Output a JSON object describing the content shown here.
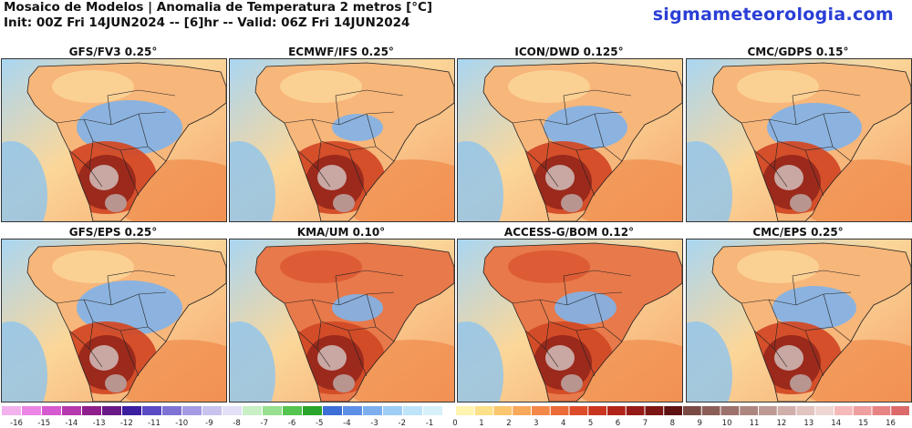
{
  "header": {
    "title": "Mosaico de Modelos | Anomalia de Temperatura 2 metros [°C]",
    "subtitle": "Init: 00Z Fri 14JUN2024 -- [6]hr -- Valid: 06Z Fri 14JUN2024",
    "brand": "sigmameteorologia.com"
  },
  "panels": [
    {
      "label": "GFS/FV3 0.25°",
      "warmth": 0.4,
      "cool_inland": 0.8
    },
    {
      "label": "ECMWF/IFS 0.25°",
      "warmth": 0.2,
      "cool_inland": 0.3
    },
    {
      "label": "ICON/DWD 0.125°",
      "warmth": 0.5,
      "cool_inland": 0.6
    },
    {
      "label": "CMC/GDPS 0.15°",
      "warmth": 0.6,
      "cool_inland": 0.7
    },
    {
      "label": "GFS/EPS 0.25°",
      "warmth": 0.4,
      "cool_inland": 0.8
    },
    {
      "label": "KMA/UM 0.10°",
      "warmth": 0.9,
      "cool_inland": 0.3
    },
    {
      "label": "ACCESS-G/BOM 0.12°",
      "warmth": 0.8,
      "cool_inland": 0.4
    },
    {
      "label": "CMC/EPS 0.25°",
      "warmth": 0.5,
      "cool_inland": 0.6
    }
  ],
  "colorbar": {
    "labels": [
      "-16",
      "-15",
      "-14",
      "-13",
      "-12",
      "-11",
      "-10",
      "-9",
      "-8",
      "-7",
      "-6",
      "-5",
      "-4",
      "-3",
      "-2",
      "-1",
      "0",
      "1",
      "2",
      "3",
      "4",
      "5",
      "6",
      "7",
      "8",
      "9",
      "10",
      "11",
      "12",
      "13",
      "14",
      "15",
      "16"
    ],
    "neg_colors": [
      "#f3b2ee",
      "#ec86e6",
      "#d65ad0",
      "#b63aae",
      "#8e1f8c",
      "#6a1a86",
      "#3b1fa0",
      "#5b4bc4",
      "#7e73d4",
      "#a49be2",
      "#c8c2ee",
      "#e2dff6",
      "#c9efc5",
      "#96e08e",
      "#55c450",
      "#2aa52b",
      "#3d6fd6",
      "#5e8fe6",
      "#7dafef",
      "#9ecdf5",
      "#bee4f9",
      "#d7f1fb"
    ],
    "pos_colors": [
      "#fff4b0",
      "#fde08a",
      "#fbc66e",
      "#f8a85a",
      "#f38848",
      "#ea6a38",
      "#dc4c2a",
      "#c9351f",
      "#b2241a",
      "#961a17",
      "#7c1614",
      "#5e1212",
      "#7a4a44",
      "#8c5e58",
      "#9d726c",
      "#ae8680",
      "#bf9a95",
      "#d0aeaa",
      "#e1c3bf",
      "#efd6d3",
      "#f6b9b9",
      "#ef9f9f",
      "#e68484",
      "#dc6a6a"
    ]
  }
}
